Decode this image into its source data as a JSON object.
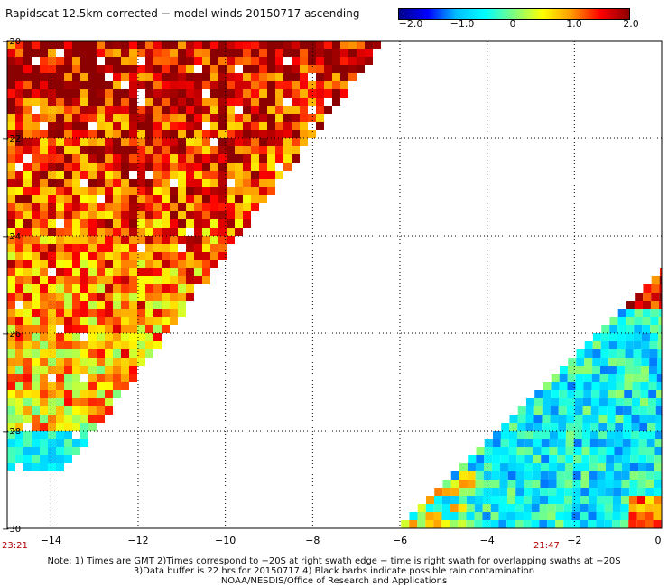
{
  "title": "Rapidscat 12.5km corrected − model winds 20150717 ascending",
  "colorbar": {
    "ticks": [
      "−2.0",
      "−1.0",
      "0",
      "1.0",
      "2.0"
    ],
    "stops": [
      "#00008b",
      "#0000ff",
      "#00bfff",
      "#00ffff",
      "#7fff7f",
      "#ffff00",
      "#ff9900",
      "#ff0000",
      "#8b0000"
    ]
  },
  "map": {
    "lon_range": [
      -15,
      0
    ],
    "lat_range": [
      -30,
      -20
    ],
    "x_ticks": [
      "−14",
      "−12",
      "−10",
      "−8",
      "−6",
      "−4",
      "−2",
      "0"
    ],
    "y_ticks": [
      "−20",
      "−22",
      "−24",
      "−26",
      "−28",
      "−30"
    ]
  },
  "swath_times": {
    "left": "23:21",
    "right": "21:47"
  },
  "notes": [
    "Note: 1) Times are GMT 2)Times correspond to −20S at right swath edge − time is right swath for overlapping swaths at −20S",
    "3)Data buffer is 22 hrs for 20150717 4) Black barbs indicate possible rain contamination",
    "NOAA/NESDIS/Office of Research and Applications"
  ],
  "colors": {
    "grid": "#000000",
    "time_label": "#b00000"
  }
}
